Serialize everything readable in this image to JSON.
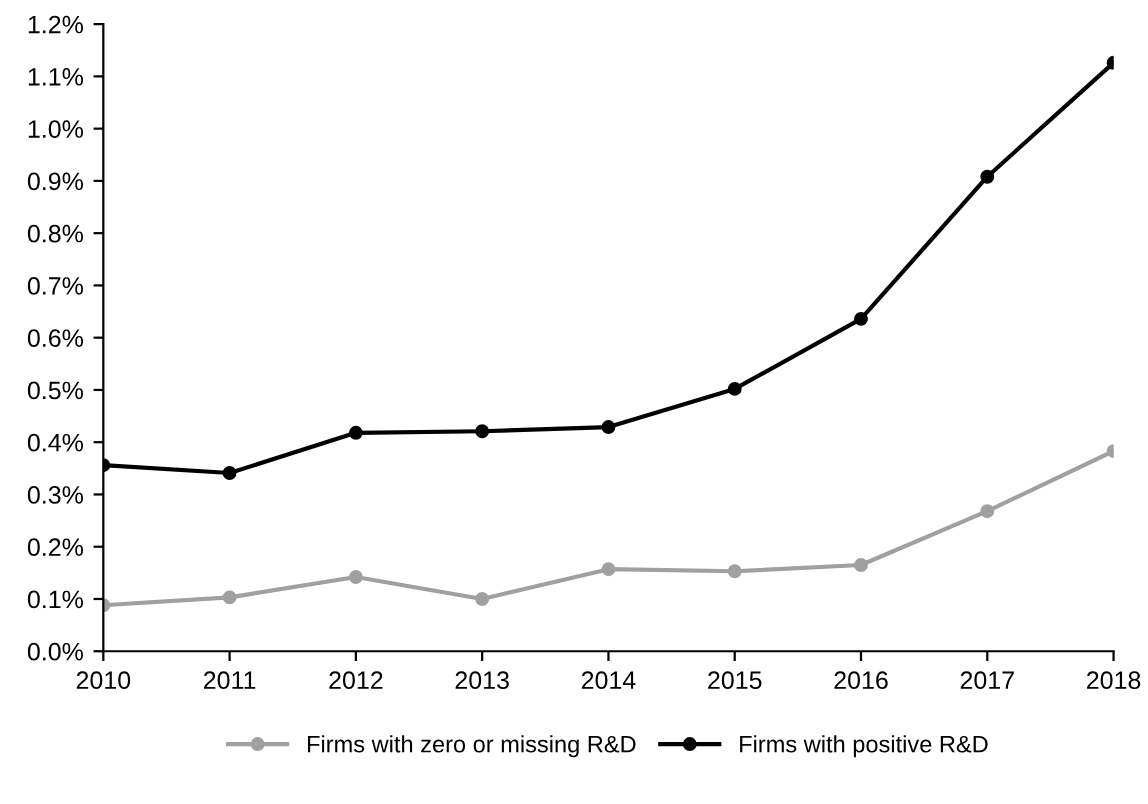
{
  "chart_data": {
    "type": "line",
    "x": [
      2010,
      2011,
      2012,
      2013,
      2014,
      2015,
      2016,
      2017,
      2018
    ],
    "series": [
      {
        "name": "Firms with zero or missing R&D",
        "color": "#a0a0a0",
        "values": [
          0.088,
          0.103,
          0.142,
          0.1,
          0.157,
          0.153,
          0.165,
          0.268,
          0.383
        ]
      },
      {
        "name": "Firms with positive R&D",
        "color": "#000000",
        "values": [
          0.356,
          0.341,
          0.418,
          0.421,
          0.429,
          0.502,
          0.636,
          0.908,
          1.126
        ]
      }
    ],
    "xlim": [
      2010,
      2018
    ],
    "xticks": [
      2010,
      2011,
      2012,
      2013,
      2014,
      2015,
      2016,
      2017,
      2018
    ],
    "ylim": [
      0,
      1.2
    ],
    "yticks": [
      {
        "value": 0,
        "label": "0.0%"
      },
      {
        "value": 0.1,
        "label": "0.1%"
      },
      {
        "value": 0.2,
        "label": "0.2%"
      },
      {
        "value": 0.3,
        "label": "0.3%"
      },
      {
        "value": 0.4,
        "label": "0.4%"
      },
      {
        "value": 0.5,
        "label": "0.5%"
      },
      {
        "value": 0.6,
        "label": "0.6%"
      },
      {
        "value": 0.7,
        "label": "0.7%"
      },
      {
        "value": 0.8,
        "label": "0.8%"
      },
      {
        "value": 0.9,
        "label": "0.9%"
      },
      {
        "value": 1.0,
        "label": "1.0%"
      },
      {
        "value": 1.1,
        "label": "1.1%"
      },
      {
        "value": 1.2,
        "label": "1.2%"
      }
    ],
    "grid": false,
    "legend": "bottom",
    "marker": "circle",
    "line_style": "solid"
  }
}
